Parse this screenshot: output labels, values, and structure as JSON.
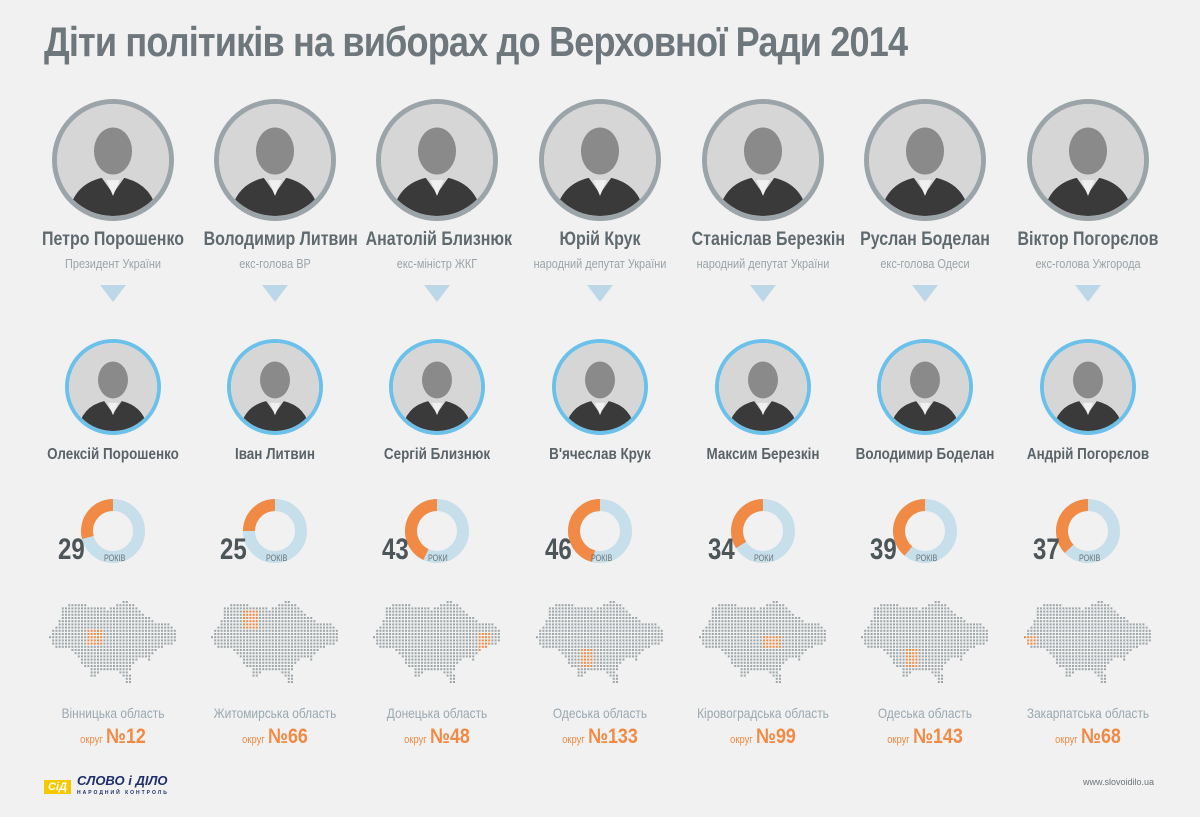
{
  "title": "Діти політиків на виборах до Верховної Ради 2014",
  "years_label": "РОКІВ",
  "okrug_label": "округ",
  "colors": {
    "accent": "#f08a44",
    "ring": "#c7dfeb",
    "child_border": "#6cc1ea",
    "parent_border": "#9ba5a9"
  },
  "people": [
    {
      "parent": "Петро Порошенко",
      "role": "Президент України",
      "child": "Олексій Порошенко",
      "age": 29,
      "years": "РОКІВ",
      "region": "Вінницька область",
      "okrug": "№12"
    },
    {
      "parent": "Володимир Литвин",
      "role": "екс-голова ВР",
      "child": "Іван Литвин",
      "age": 25,
      "years": "РОКІВ",
      "region": "Житомирська область",
      "okrug": "№66"
    },
    {
      "parent": "Анатолій Близнюк",
      "role": "екс-міністр ЖКГ",
      "child": "Сергій Близнюк",
      "age": 43,
      "years": "РОКИ",
      "region": "Донецька область",
      "okrug": "№48"
    },
    {
      "parent": "Юрій Крук",
      "role": "народний депутат України",
      "child": "В'ячеслав Крук",
      "age": 46,
      "years": "РОКІВ",
      "region": "Одеська область",
      "okrug": "№133"
    },
    {
      "parent": "Станіслав Березкін",
      "role": "народний депутат України",
      "child": "Максим Березкін",
      "age": 34,
      "years": "РОКИ",
      "region": "Кіровоградська область",
      "okrug": "№99"
    },
    {
      "parent": "Руслан Боделан",
      "role": "екс-голова Одеси",
      "child": "Володимир Боделан",
      "age": 39,
      "years": "РОКІВ",
      "region": "Одеська область",
      "okrug": "№143"
    },
    {
      "parent": "Віктор Погорєлов",
      "role": "екс-голова Ужгорода",
      "child": "Андрій Погорєлов",
      "age": 37,
      "years": "РОКІВ",
      "region": "Закарпатська область",
      "okrug": "№68"
    }
  ],
  "logo": {
    "mark": "СіД",
    "name": "СЛОВО і ДІЛО",
    "tagline": "НАРОДНИЙ КОНТРОЛЬ"
  },
  "url": "www.slovoidilo.ua"
}
